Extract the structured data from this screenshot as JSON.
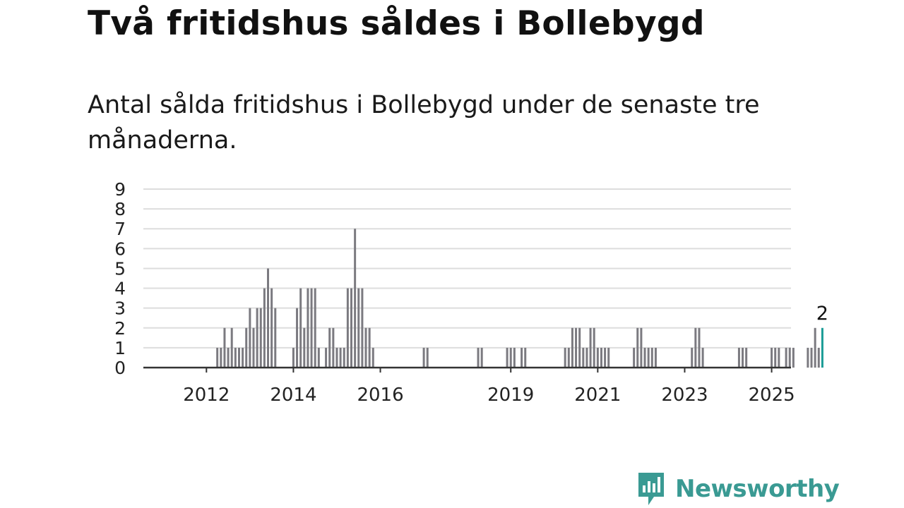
{
  "title": "Två fritidshus såldes i Bollebygd",
  "subtitle": "Antal sålda fritidshus i Bollebygd under de senaste tre månaderna.",
  "brand": {
    "name": "Newsworthy",
    "icon": "newsworthy-logo-icon",
    "color": "#3a9a93"
  },
  "chart_data": {
    "type": "bar",
    "ylim": [
      0,
      9
    ],
    "y_ticks": [
      "0",
      "1",
      "2",
      "3",
      "4",
      "5",
      "6",
      "7",
      "8",
      "9"
    ],
    "x_tick_labels": [
      {
        "label": "2012",
        "x": 2012
      },
      {
        "label": "2014",
        "x": 2014
      },
      {
        "label": "2016",
        "x": 2016
      },
      {
        "label": "2019",
        "x": 2019
      },
      {
        "label": "2021",
        "x": 2021
      },
      {
        "label": "2023",
        "x": 2023
      },
      {
        "label": "2025",
        "x": 2025
      }
    ],
    "x_range": [
      "2011-03",
      "2026-06"
    ],
    "grid": true,
    "colors": {
      "bar": "#7b7a80",
      "highlight": "#1a9c96",
      "grid": "#dddddd",
      "axis": "#333333"
    },
    "highlight_label": "2",
    "points": [
      [
        "2012-04",
        1
      ],
      [
        "2012-05",
        1
      ],
      [
        "2012-06",
        2
      ],
      [
        "2012-07",
        1
      ],
      [
        "2012-08",
        2
      ],
      [
        "2012-09",
        1
      ],
      [
        "2012-10",
        1
      ],
      [
        "2012-11",
        1
      ],
      [
        "2012-12",
        2
      ],
      [
        "2013-01",
        3
      ],
      [
        "2013-02",
        2
      ],
      [
        "2013-03",
        3
      ],
      [
        "2013-04",
        3
      ],
      [
        "2013-05",
        4
      ],
      [
        "2013-06",
        5
      ],
      [
        "2013-07",
        4
      ],
      [
        "2013-08",
        3
      ],
      [
        "2014-01",
        1
      ],
      [
        "2014-02",
        3
      ],
      [
        "2014-03",
        4
      ],
      [
        "2014-04",
        2
      ],
      [
        "2014-05",
        4
      ],
      [
        "2014-06",
        4
      ],
      [
        "2014-07",
        4
      ],
      [
        "2014-08",
        1
      ],
      [
        "2014-10",
        1
      ],
      [
        "2014-11",
        2
      ],
      [
        "2014-12",
        2
      ],
      [
        "2015-01",
        1
      ],
      [
        "2015-02",
        1
      ],
      [
        "2015-03",
        1
      ],
      [
        "2015-04",
        4
      ],
      [
        "2015-05",
        4
      ],
      [
        "2015-06",
        7
      ],
      [
        "2015-07",
        4
      ],
      [
        "2015-08",
        4
      ],
      [
        "2015-09",
        2
      ],
      [
        "2015-10",
        2
      ],
      [
        "2015-11",
        1
      ],
      [
        "2017-01",
        1
      ],
      [
        "2017-02",
        1
      ],
      [
        "2018-04",
        1
      ],
      [
        "2018-05",
        1
      ],
      [
        "2018-12",
        1
      ],
      [
        "2019-01",
        1
      ],
      [
        "2019-02",
        1
      ],
      [
        "2019-04",
        1
      ],
      [
        "2019-05",
        1
      ],
      [
        "2020-04",
        1
      ],
      [
        "2020-05",
        1
      ],
      [
        "2020-06",
        2
      ],
      [
        "2020-07",
        2
      ],
      [
        "2020-08",
        2
      ],
      [
        "2020-09",
        1
      ],
      [
        "2020-10",
        1
      ],
      [
        "2020-11",
        2
      ],
      [
        "2020-12",
        2
      ],
      [
        "2021-01",
        1
      ],
      [
        "2021-02",
        1
      ],
      [
        "2021-03",
        1
      ],
      [
        "2021-04",
        1
      ],
      [
        "2021-11",
        1
      ],
      [
        "2021-12",
        2
      ],
      [
        "2022-01",
        2
      ],
      [
        "2022-02",
        1
      ],
      [
        "2022-03",
        1
      ],
      [
        "2022-04",
        1
      ],
      [
        "2022-05",
        1
      ],
      [
        "2023-03",
        1
      ],
      [
        "2023-04",
        2
      ],
      [
        "2023-05",
        2
      ],
      [
        "2023-06",
        1
      ],
      [
        "2024-04",
        1
      ],
      [
        "2024-05",
        1
      ],
      [
        "2024-06",
        1
      ],
      [
        "2025-01",
        1
      ],
      [
        "2025-02",
        1
      ],
      [
        "2025-03",
        1
      ],
      [
        "2025-05",
        1
      ],
      [
        "2025-06",
        1
      ],
      [
        "2025-07",
        1
      ],
      [
        "2025-11",
        1
      ],
      [
        "2025-12",
        1
      ],
      [
        "2026-01",
        2
      ],
      [
        "2026-02",
        1
      ]
    ],
    "highlight_point": [
      "2026-03",
      2
    ]
  }
}
